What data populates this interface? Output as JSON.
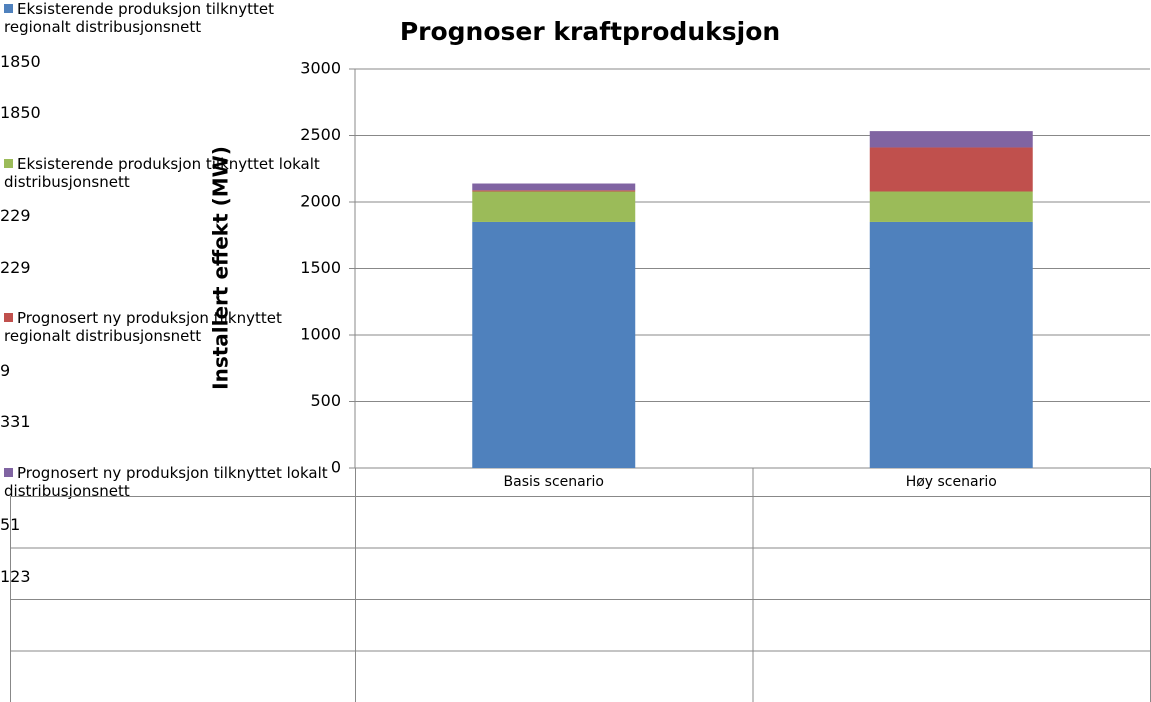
{
  "chart_data": {
    "type": "stacked_bar",
    "title": "Prognoser kraftproduksjon",
    "y_label": "Installert effekt (MW)",
    "categories": [
      "Basis scenario",
      "Høy scenario"
    ],
    "series": [
      {
        "name": "Eksisterende produksjon tilknyttet regionalt distribusjonsnett",
        "color": "#4f81bd",
        "values": [
          1850,
          1850
        ]
      },
      {
        "name": "Eksisterende produksjon tilknyttet lokalt distribusjonsnett",
        "color": "#9bbb59",
        "values": [
          229,
          229
        ]
      },
      {
        "name": "Prognosert ny produksjon tilknyttet regionalt distribusjonsnett",
        "color": "#c0504d",
        "values": [
          9,
          331
        ]
      },
      {
        "name": "Prognosert ny produksjon tilknyttet lokalt distribusjonsnett",
        "color": "#8064a2",
        "values": [
          51,
          123
        ]
      }
    ],
    "ylim": [
      0,
      3000
    ],
    "yticks": [
      0,
      500,
      1000,
      1500,
      2000,
      2500,
      3000
    ],
    "grid": true,
    "legend": "data-table"
  }
}
